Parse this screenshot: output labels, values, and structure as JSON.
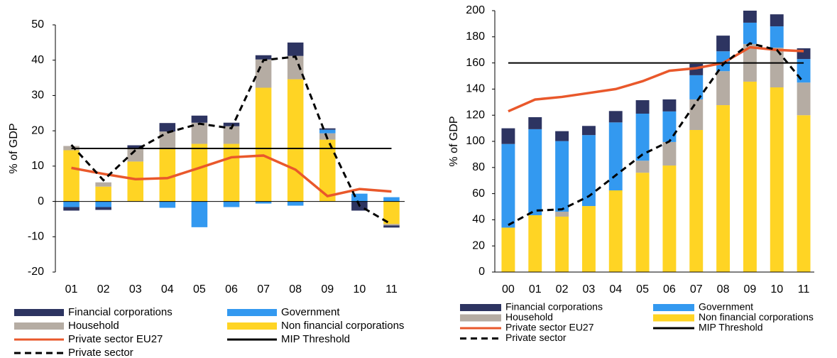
{
  "chart_data": [
    {
      "type": "bar",
      "ylabel": "% of GDP",
      "categories": [
        "01",
        "02",
        "03",
        "04",
        "05",
        "06",
        "07",
        "08",
        "09",
        "10",
        "11"
      ],
      "ylim": [
        -20,
        50
      ],
      "yticks": [
        -20,
        -10,
        0,
        10,
        20,
        30,
        40,
        50
      ],
      "series": [
        {
          "name": "Financial corporations",
          "kind": "bar",
          "color": "#2d3461",
          "values": [
            -1.0,
            -0.8,
            1.0,
            2.4,
            2.0,
            1.0,
            1.2,
            3.8,
            0.4,
            -2.6,
            -0.6
          ]
        },
        {
          "name": "Government",
          "kind": "bar",
          "color": "#3399f0",
          "values": [
            -1.6,
            -1.6,
            0,
            -1.8,
            -7.3,
            -1.6,
            -0.6,
            -1.2,
            1.0,
            2.2,
            1.2
          ]
        },
        {
          "name": "Household",
          "kind": "bar",
          "color": "#b5aca3",
          "values": [
            1.2,
            1.2,
            3.6,
            4.6,
            6.0,
            5.0,
            8.0,
            6.6,
            1.8,
            0,
            -0.4
          ]
        },
        {
          "name": "Non financial corporations",
          "kind": "bar",
          "color": "#ffd424",
          "values": [
            14.5,
            4.2,
            11.3,
            15.2,
            16.3,
            16.3,
            32.2,
            34.6,
            17.5,
            0,
            -6.4
          ]
        },
        {
          "name": "Private sector EU27",
          "kind": "line",
          "color": "#e9582b",
          "values": [
            9.5,
            7.8,
            6.3,
            6.6,
            9.5,
            12.5,
            13.0,
            9.0,
            1.5,
            3.5,
            2.8
          ]
        },
        {
          "name": "MIP Threshold",
          "kind": "line",
          "color": "#000000",
          "values": [
            15,
            15,
            15,
            15,
            15,
            15,
            15,
            15,
            15,
            15,
            15
          ]
        },
        {
          "name": "Private sector",
          "kind": "line",
          "dash": true,
          "color": "#000000",
          "values": [
            16.0,
            6.0,
            14.5,
            19.5,
            22.0,
            20.7,
            40.0,
            41.0,
            17.7,
            -1.2,
            -6.5
          ]
        }
      ]
    },
    {
      "type": "bar",
      "ylabel": "% of GDP",
      "categories": [
        "00",
        "01",
        "02",
        "03",
        "04",
        "05",
        "06",
        "07",
        "08",
        "09",
        "10",
        "11"
      ],
      "ylim": [
        0,
        200
      ],
      "yticks": [
        0,
        20,
        40,
        60,
        80,
        100,
        120,
        140,
        160,
        180,
        200
      ],
      "series": [
        {
          "name": "Financial corporations",
          "kind": "bar",
          "color": "#2d3461",
          "values": [
            12,
            9.2,
            7.6,
            7,
            8.7,
            10.3,
            9.2,
            8.7,
            12,
            9.2,
            9.2,
            8.2
          ]
        },
        {
          "name": "Government",
          "kind": "bar",
          "color": "#3399f0",
          "values": [
            64,
            65.8,
            54,
            54.3,
            52,
            36,
            23.4,
            18.5,
            15.2,
            16.3,
            16.3,
            18
          ]
        },
        {
          "name": "Household",
          "kind": "bar",
          "color": "#b5aca3",
          "values": [
            0,
            0,
            3.8,
            0,
            0,
            9.2,
            18,
            23.4,
            26,
            28.8,
            30.4,
            25
          ]
        },
        {
          "name": "Non financial corporations",
          "kind": "bar",
          "color": "#ffd424",
          "values": [
            34,
            43.5,
            42.4,
            50.5,
            62.5,
            76,
            81.5,
            108.7,
            127.7,
            145.7,
            141.3,
            120
          ]
        },
        {
          "name": "Private sector EU27",
          "kind": "line",
          "color": "#e9582b",
          "values": [
            123,
            132,
            134,
            137,
            140,
            146,
            154,
            156,
            160,
            172,
            170,
            169
          ]
        },
        {
          "name": "MIP Threshold",
          "kind": "line",
          "color": "#000000",
          "values": [
            160,
            160,
            160,
            160,
            160,
            160,
            160,
            160,
            160,
            160,
            160,
            160
          ]
        },
        {
          "name": "Private sector",
          "kind": "line",
          "dash": true,
          "color": "#000000",
          "values": [
            36,
            47,
            48,
            58,
            74,
            90,
            100,
            130,
            159,
            175,
            170,
            145
          ]
        }
      ]
    }
  ]
}
